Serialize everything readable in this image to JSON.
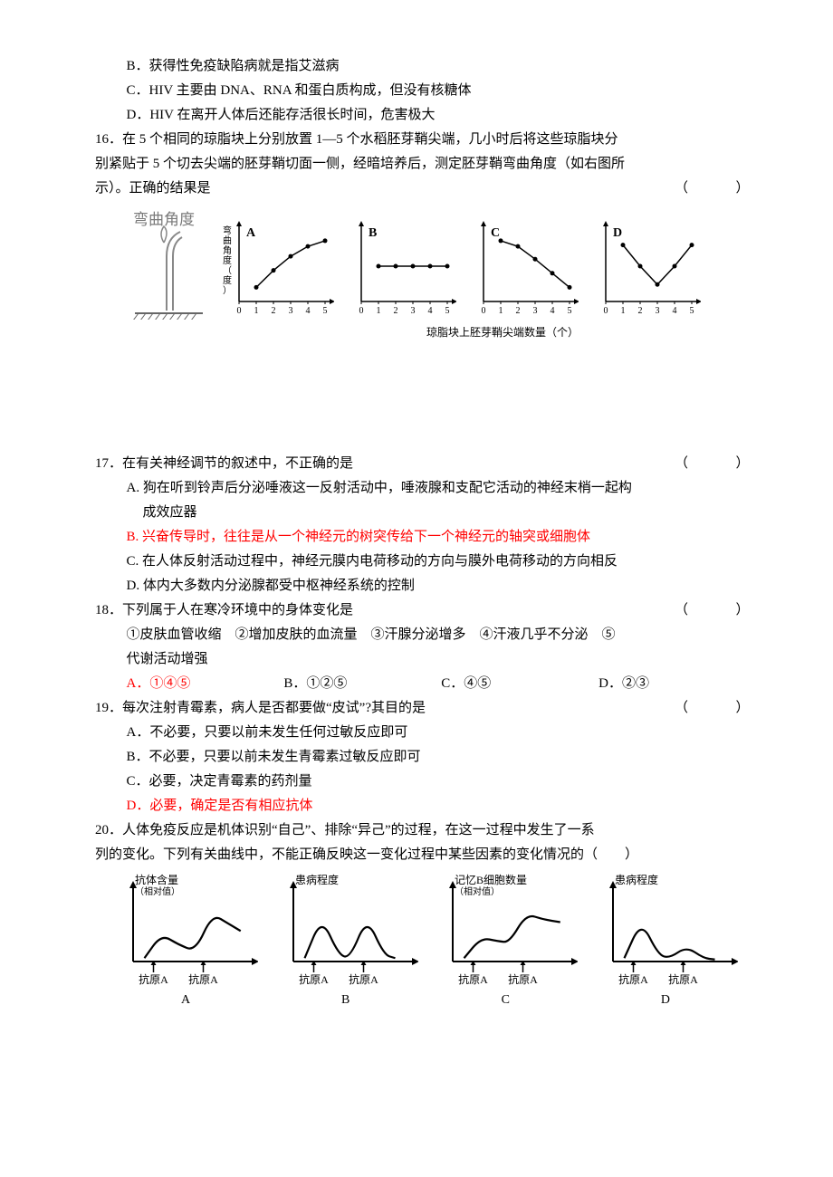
{
  "q15": {
    "optB": "B．获得性免疫缺陷病就是指艾滋病",
    "optC": "C．HIV 主要由 DNA、RNA 和蛋白质构成，但没有核糖体",
    "optD": "D．HIV 在离开人体后还能存活很长时间，危害极大"
  },
  "q16": {
    "stem1": "16．在 5 个相同的琼脂块上分别放置 1—5 个水稻胚芽鞘尖端，几小时后将这些琼脂块分",
    "stem2": "别紧贴于 5 个切去尖端的胚芽鞘切面一侧，经暗培养后，测定胚芽鞘弯曲角度（如右图所",
    "stem3": "示）。正确的结果是",
    "paren": "（　　）",
    "diagram_label": "弯曲角度",
    "ylabel": "弯曲角度（度）",
    "xlabel": "琼脂块上胚芽鞘尖端数量（个）",
    "charts": {
      "xticks": [
        0,
        1,
        2,
        3,
        4,
        5
      ],
      "A": {
        "label": "A",
        "pts": [
          [
            1,
            1.0
          ],
          [
            2,
            2.2
          ],
          [
            3,
            3.2
          ],
          [
            4,
            3.9
          ],
          [
            5,
            4.3
          ]
        ]
      },
      "B": {
        "label": "B",
        "pts": [
          [
            1,
            2.5
          ],
          [
            2,
            2.5
          ],
          [
            3,
            2.5
          ],
          [
            4,
            2.5
          ],
          [
            5,
            2.5
          ]
        ]
      },
      "C": {
        "label": "C",
        "pts": [
          [
            1,
            4.3
          ],
          [
            2,
            3.9
          ],
          [
            3,
            3.0
          ],
          [
            4,
            2.0
          ],
          [
            5,
            1.0
          ]
        ]
      },
      "D": {
        "label": "D",
        "pts": [
          [
            1,
            4.0
          ],
          [
            2,
            2.5
          ],
          [
            3,
            1.2
          ],
          [
            4,
            2.5
          ],
          [
            5,
            4.0
          ]
        ]
      }
    },
    "colors": {
      "line": "#000000",
      "bg": "#ffffff"
    }
  },
  "q17": {
    "stem": "17．在有关神经调节的叙述中，不正确的是",
    "paren": "（　　）",
    "optA1": "A. 狗在听到铃声后分泌唾液这一反射活动中，唾液腺和支配它活动的神经末梢一起构",
    "optA2": "成效应器",
    "optB": "B. 兴奋传导时，往往是从一个神经元的树突传给下一个神经元的轴突或细胞体",
    "optC": "C. 在人体反射活动过程中，神经元膜内电荷移动的方向与膜外电荷移动的方向相反",
    "optD": "D. 体内大多数内分泌腺都受中枢神经系统的控制"
  },
  "q18": {
    "stem": "18．下列属于人在寒冷环境中的身体变化是",
    "paren": "（　　）",
    "items1": "①皮肤血管收缩　②增加皮肤的血流量　③汗腺分泌增多　④汗液几乎不分泌　⑤",
    "items2": "代谢活动增强",
    "optA": "A．①④⑤",
    "optB": "B．①②⑤",
    "optC": "C．④⑤",
    "optD": "D．②③"
  },
  "q19": {
    "stem": "19．每次注射青霉素，病人是否都要做“皮试”?其目的是",
    "paren": "（　　）",
    "optA": "A．不必要，只要以前未发生任何过敏反应即可",
    "optB": "B．不必要，只要以前未发生青霉素过敏反应即可",
    "optC": "C．必要，决定青霉素的药剂量",
    "optD": "D．必要，确定是否有相应抗体"
  },
  "q20": {
    "stem1": "20．人体免疫反应是机体识别“自己”、排除“异己”的过程，在这一过程中发生了一系",
    "stem2": "列的变化。下列有关曲线中，不能正确反映这一变化过程中某些因素的变化情况的（　　）",
    "charts": {
      "A": {
        "ylabel": "抗体含量",
        "ysub": "（相对值）",
        "xl1": "抗原A",
        "xl2": "抗原A",
        "letter": "A"
      },
      "B": {
        "ylabel": "患病程度",
        "ysub": "",
        "xl1": "抗原A",
        "xl2": "抗原A",
        "letter": "B"
      },
      "C": {
        "ylabel": "记忆B细胞数量",
        "ysub": "（相对值）",
        "xl1": "抗原A",
        "xl2": "抗原A",
        "letter": "C"
      },
      "D": {
        "ylabel": "患病程度",
        "ysub": "",
        "xl1": "抗原A",
        "xl2": "抗原A",
        "letter": "D"
      }
    },
    "curves": {
      "A": [
        [
          0.1,
          0.05
        ],
        [
          0.25,
          0.4
        ],
        [
          0.4,
          0.25
        ],
        [
          0.55,
          0.15
        ],
        [
          0.7,
          0.7
        ],
        [
          0.85,
          0.55
        ],
        [
          0.95,
          0.45
        ]
      ],
      "B": [
        [
          0.1,
          0.05
        ],
        [
          0.25,
          0.65
        ],
        [
          0.4,
          0.1
        ],
        [
          0.5,
          0.05
        ],
        [
          0.65,
          0.65
        ],
        [
          0.8,
          0.1
        ],
        [
          0.9,
          0.05
        ]
      ],
      "C": [
        [
          0.1,
          0.05
        ],
        [
          0.25,
          0.35
        ],
        [
          0.4,
          0.3
        ],
        [
          0.5,
          0.28
        ],
        [
          0.65,
          0.7
        ],
        [
          0.8,
          0.62
        ],
        [
          0.95,
          0.58
        ]
      ],
      "D": [
        [
          0.1,
          0.05
        ],
        [
          0.25,
          0.6
        ],
        [
          0.4,
          0.1
        ],
        [
          0.5,
          0.05
        ],
        [
          0.65,
          0.22
        ],
        [
          0.8,
          0.05
        ],
        [
          0.9,
          0.03
        ]
      ]
    },
    "colors": {
      "line": "#000000"
    }
  }
}
